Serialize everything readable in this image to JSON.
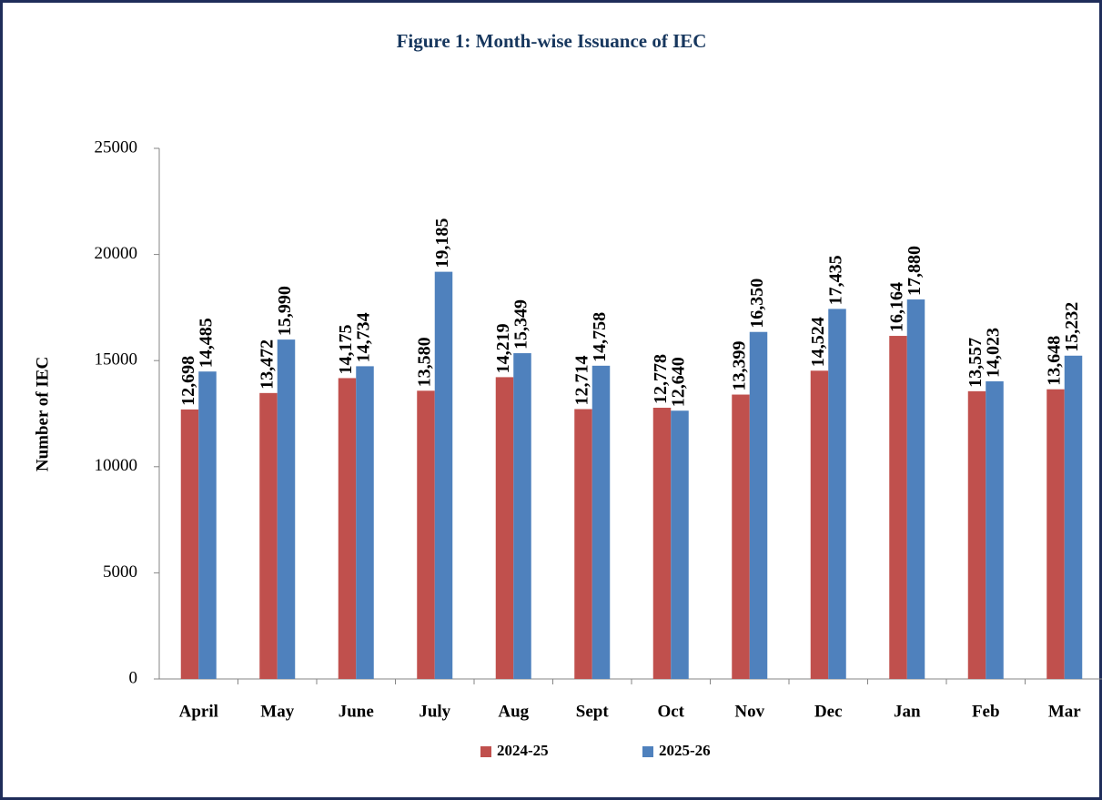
{
  "chart_data": {
    "type": "bar",
    "title": "Figure 1: Month-wise Issuance of IEC",
    "y_label": "Number of IEC",
    "categories": [
      "April",
      "May",
      "June",
      "July",
      "Aug",
      "Sept",
      "Oct",
      "Nov",
      "Dec",
      "Jan",
      "Feb",
      "Mar"
    ],
    "series": [
      {
        "name": "2024-25",
        "color": "#c0504d",
        "values": [
          12698,
          13472,
          14175,
          13580,
          14219,
          12714,
          12778,
          13399,
          14524,
          16164,
          13557,
          13648
        ],
        "value_labels": [
          "12,698",
          "13,472",
          "14,175",
          "13,580",
          "14,219",
          "12,714",
          "12,778",
          "13,399",
          "14,524",
          "16,164",
          "13,557",
          "13,648"
        ]
      },
      {
        "name": "2025-26",
        "color": "#4f81bd",
        "values": [
          14485,
          15990,
          14734,
          19185,
          15349,
          14758,
          12640,
          16350,
          17435,
          17880,
          14023,
          15232
        ],
        "value_labels": [
          "14,485",
          "15,990",
          "14,734",
          "19,185",
          "15,349",
          "14,758",
          "12,640",
          "16,350",
          "17,435",
          "17,880",
          "14,023",
          "15,232"
        ]
      }
    ],
    "ylim": [
      0,
      25000
    ],
    "yticks": [
      0,
      5000,
      10000,
      15000,
      20000,
      25000
    ],
    "grid": false,
    "legend": "bottom"
  }
}
